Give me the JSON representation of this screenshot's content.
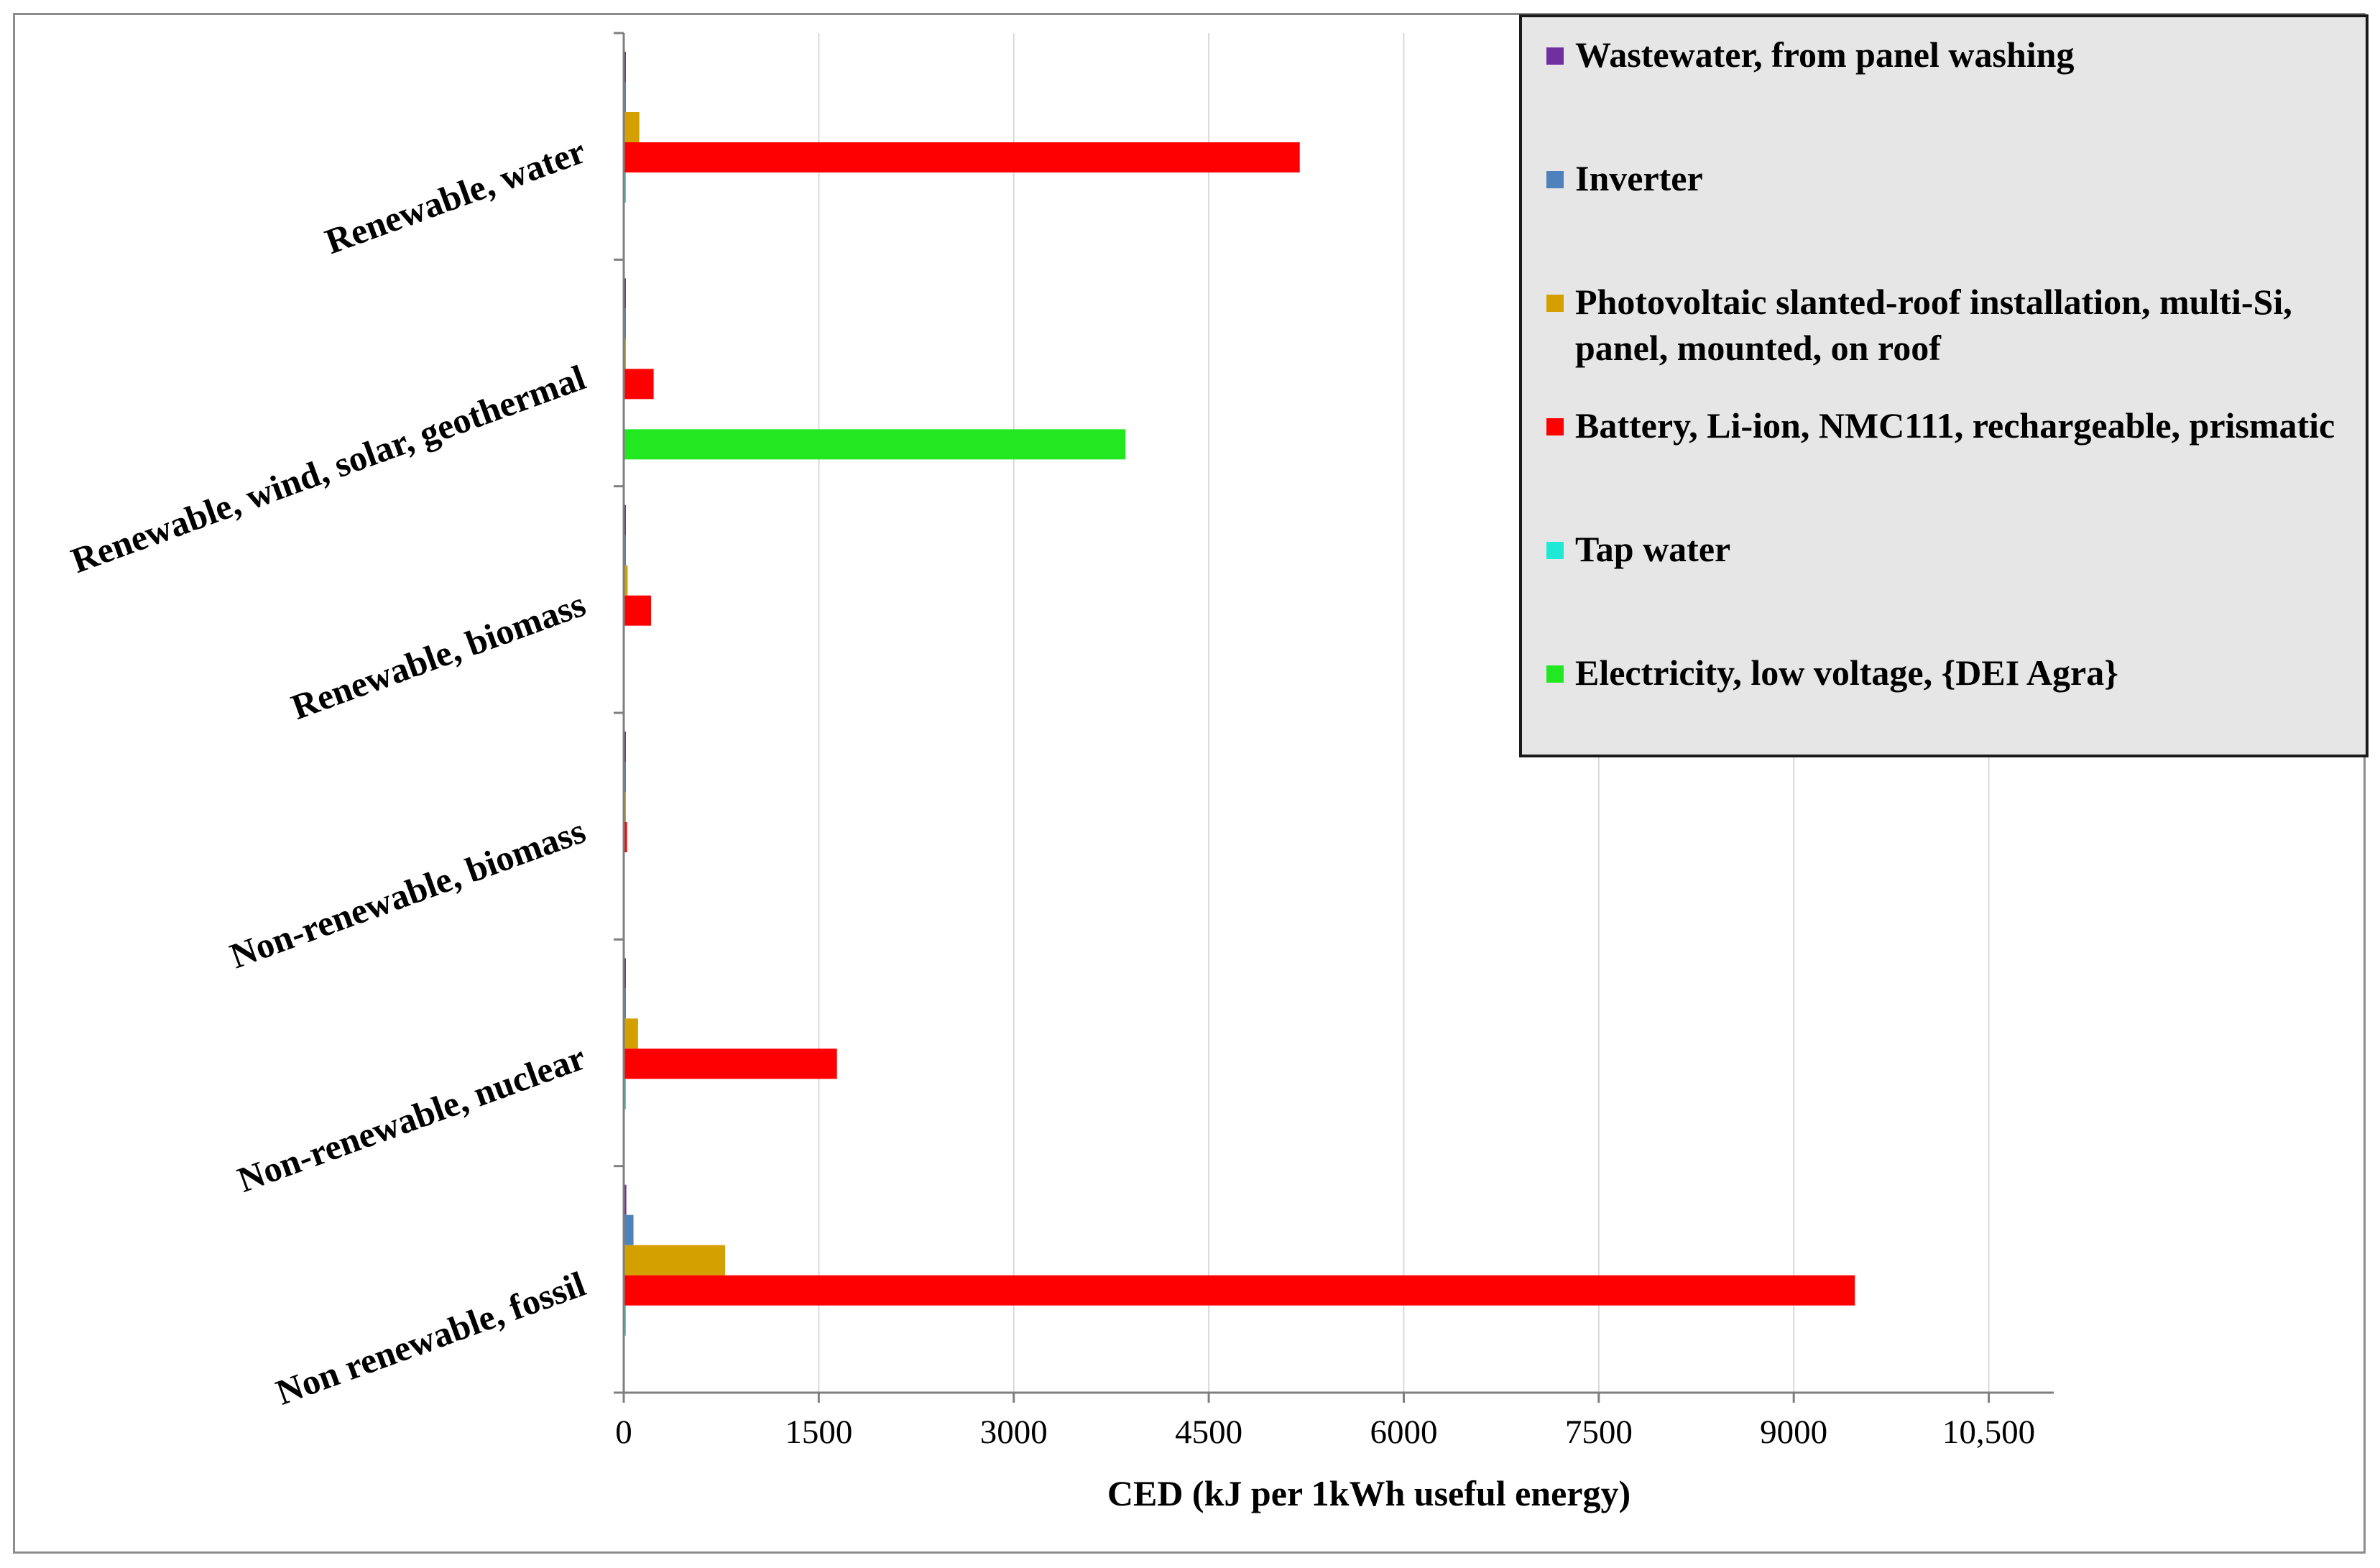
{
  "chart_data": {
    "type": "bar",
    "orientation": "horizontal",
    "categories": [
      "Renewable, water",
      "Renewable, wind, solar, geothermal",
      "Renewable, biomass",
      "Non-renewable, biomass",
      "Non-renewable, nuclear",
      "Non renewable, fossil"
    ],
    "series": [
      {
        "name": "Wastewater, from panel washing",
        "color": "#7030a0",
        "values": [
          15,
          5,
          5,
          5,
          15,
          20
        ]
      },
      {
        "name": "Inverter",
        "color": "#4f81bd",
        "values": [
          15,
          15,
          15,
          15,
          15,
          75
        ]
      },
      {
        "name": "Photovoltaic slanted-roof installation, multi-Si, panel, mounted, on roof",
        "color": "#d4a000",
        "values": [
          120,
          10,
          30,
          10,
          110,
          780
        ]
      },
      {
        "name": "Battery, Li-ion, NMC111, rechargeable, prismatic",
        "color": "#ff0000",
        "values": [
          5200,
          230,
          210,
          25,
          1640,
          9470
        ]
      },
      {
        "name": "Tap water",
        "color": "#1de9d5",
        "values": [
          15,
          0,
          0,
          0,
          15,
          15
        ]
      },
      {
        "name": "Electricity, low voltage, {DEI Agra}",
        "color": "#22e822",
        "values": [
          0,
          3860,
          0,
          0,
          0,
          0
        ]
      }
    ],
    "xticks": [
      "0",
      "1500",
      "3000",
      "4500",
      "6000",
      "7500",
      "9000",
      "10,500"
    ],
    "xtick_values": [
      0,
      1500,
      3000,
      4500,
      6000,
      7500,
      9000,
      10500
    ],
    "xlim": [
      0,
      11000
    ],
    "xlabel": "CED (kJ per 1kWh useful energy)",
    "ylabel": "",
    "title": "",
    "grid": "vertical",
    "legend_position": "top-right"
  }
}
